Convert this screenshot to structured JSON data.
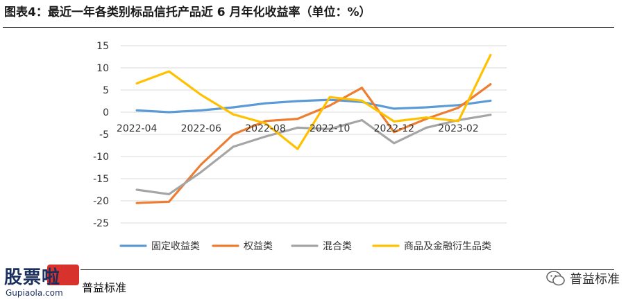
{
  "header": {
    "title": "图表4：最近一年各类别标品信托产品近 6 月年化收益率（单位：%）"
  },
  "footer": {
    "source_label": "普益标准",
    "watermark_left_text": "股票啦",
    "watermark_left_url": "Gupiaola.com",
    "watermark_right_text": "普益标准"
  },
  "chart_data": {
    "type": "line",
    "title": "",
    "xlabel": "",
    "ylabel": "",
    "ylim": [
      -25,
      15
    ],
    "yticks": [
      15,
      10,
      5,
      0,
      -5,
      -10,
      -15,
      -20,
      -25
    ],
    "x": [
      "2022-04",
      "2022-05",
      "2022-06",
      "2022-07",
      "2022-08",
      "2022-09",
      "2022-10",
      "2022-11",
      "2022-12",
      "2023-01",
      "2023-02",
      "2023-03"
    ],
    "xtick_labels": [
      "2022-04",
      "2022-06",
      "2022-08",
      "2022-10",
      "2022-12",
      "2023-02"
    ],
    "grid": "horizontal",
    "legend_position": "bottom",
    "series": [
      {
        "name": "固定收益类",
        "color": "#5b9bd5",
        "values": [
          0.4,
          0.0,
          0.4,
          1.1,
          2.0,
          2.5,
          2.8,
          2.3,
          0.8,
          1.1,
          1.6,
          2.6
        ]
      },
      {
        "name": "权益类",
        "color": "#ed7d31",
        "values": [
          -20.5,
          -20.2,
          -11.8,
          -5.0,
          -2.0,
          -1.5,
          1.5,
          5.5,
          -4.5,
          -1.5,
          1.0,
          6.3
        ]
      },
      {
        "name": "混合类",
        "color": "#a5a5a5",
        "values": [
          -17.5,
          -18.5,
          -13.5,
          -7.8,
          -5.5,
          -3.5,
          -3.8,
          -1.8,
          -7.0,
          -3.5,
          -1.8,
          -0.6
        ]
      },
      {
        "name": "商品及金融衍生品类",
        "color": "#ffc000",
        "values": [
          6.5,
          9.2,
          3.9,
          -0.5,
          -2.5,
          -8.3,
          3.4,
          2.6,
          -2.1,
          -1.2,
          -2.0,
          12.9
        ]
      }
    ]
  }
}
